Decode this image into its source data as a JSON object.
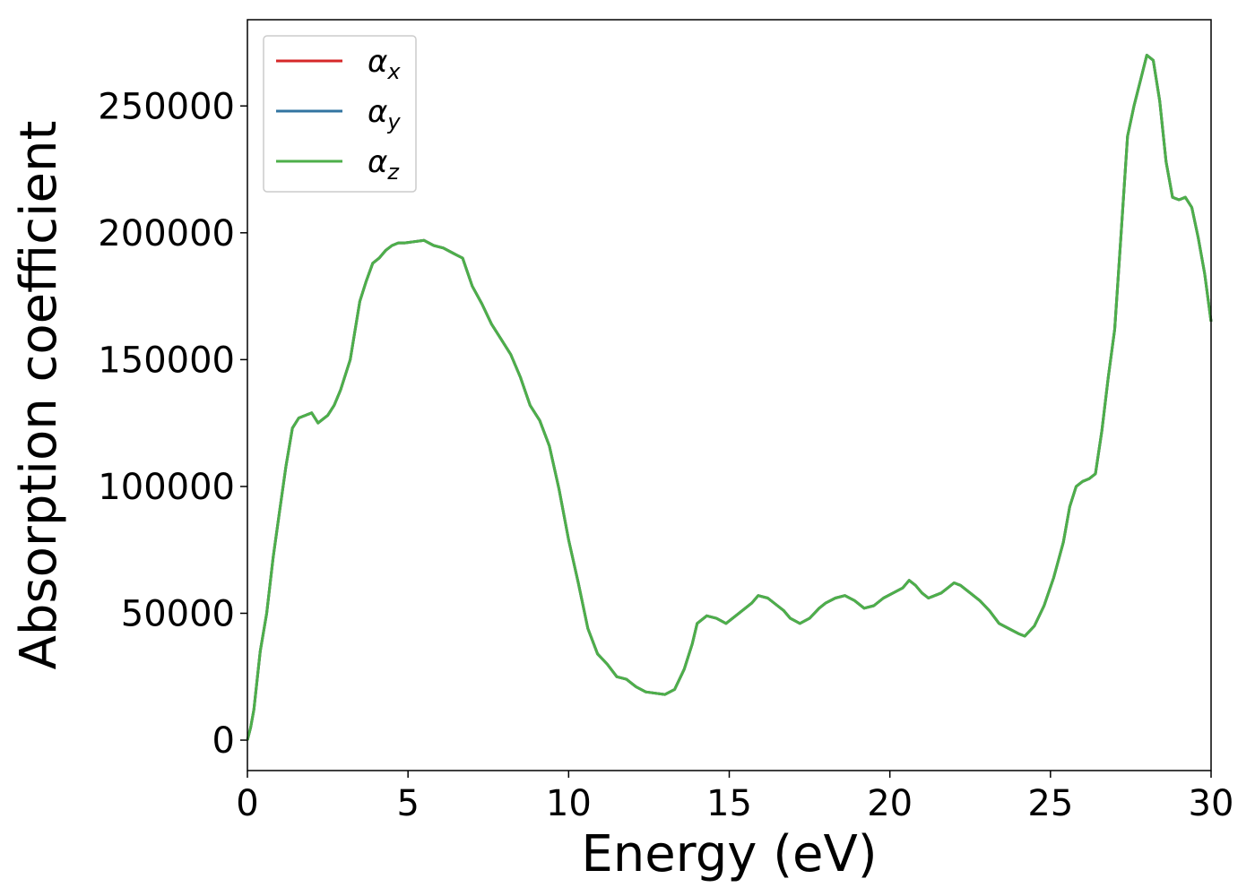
{
  "chart_data": {
    "type": "line",
    "title": "",
    "xlabel": "Energy (eV)",
    "ylabel": "Absorption coefficient",
    "xlim": [
      0,
      30
    ],
    "ylim": [
      -12000,
      284000
    ],
    "xticks": [
      0,
      5,
      10,
      15,
      20,
      25,
      30
    ],
    "yticks": [
      0,
      50000,
      100000,
      150000,
      200000,
      250000
    ],
    "grid": false,
    "legend": "upper-left",
    "x": [
      0.0,
      0.1,
      0.2,
      0.4,
      0.6,
      0.8,
      1.0,
      1.2,
      1.4,
      1.6,
      1.8,
      2.0,
      2.2,
      2.5,
      2.7,
      2.9,
      3.2,
      3.5,
      3.7,
      3.9,
      4.1,
      4.3,
      4.5,
      4.7,
      4.9,
      5.2,
      5.5,
      5.8,
      6.1,
      6.4,
      6.7,
      7.0,
      7.3,
      7.6,
      7.9,
      8.2,
      8.5,
      8.8,
      9.1,
      9.4,
      9.7,
      10.0,
      10.3,
      10.6,
      10.9,
      11.2,
      11.5,
      11.8,
      12.1,
      12.4,
      12.7,
      13.0,
      13.3,
      13.6,
      13.85,
      14.0,
      14.3,
      14.6,
      14.9,
      15.2,
      15.5,
      15.7,
      15.9,
      16.2,
      16.5,
      16.7,
      16.9,
      17.2,
      17.5,
      17.8,
      18.0,
      18.3,
      18.6,
      18.9,
      19.2,
      19.5,
      19.8,
      20.1,
      20.4,
      20.6,
      20.8,
      21.0,
      21.2,
      21.4,
      21.6,
      21.8,
      22.0,
      22.2,
      22.5,
      22.8,
      23.1,
      23.4,
      23.7,
      24.0,
      24.2,
      24.5,
      24.8,
      25.1,
      25.4,
      25.6,
      25.8,
      26.0,
      26.2,
      26.4,
      26.6,
      26.8,
      27.0,
      27.2,
      27.4,
      27.6,
      27.8,
      28.0,
      28.2,
      28.4,
      28.6,
      28.8,
      29.0,
      29.2,
      29.4,
      29.6,
      29.8,
      30.0
    ],
    "series": [
      {
        "name": "α_x",
        "color": "#d62728",
        "values": [
          0,
          5000,
          12000,
          35000,
          50000,
          72000,
          90000,
          108000,
          123000,
          127000,
          128000,
          129000,
          125000,
          128000,
          132000,
          138000,
          150000,
          173000,
          181000,
          188000,
          190000,
          193000,
          195000,
          196000,
          196000,
          196500,
          197000,
          195000,
          194000,
          192000,
          190000,
          179000,
          172000,
          164000,
          158000,
          152000,
          143000,
          132000,
          126000,
          116000,
          99000,
          79000,
          62000,
          44000,
          34000,
          30000,
          25000,
          24000,
          21000,
          19000,
          18500,
          18000,
          20000,
          28000,
          38000,
          46000,
          49000,
          48000,
          46000,
          49000,
          52000,
          54000,
          57000,
          56000,
          53000,
          51000,
          48000,
          46000,
          48000,
          52000,
          54000,
          56000,
          57000,
          55000,
          52000,
          53000,
          56000,
          58000,
          60000,
          63000,
          61000,
          58000,
          56000,
          57000,
          58000,
          60000,
          62000,
          61000,
          58000,
          55000,
          51000,
          46000,
          44000,
          42000,
          41000,
          45000,
          53000,
          64000,
          78000,
          92000,
          100000,
          102000,
          103000,
          105000,
          122000,
          143000,
          162000,
          200000,
          238000,
          250000,
          260000,
          270000,
          268000,
          252000,
          228000,
          214000,
          213000,
          214000,
          210000,
          198000,
          184000,
          165000
        ]
      },
      {
        "name": "α_y",
        "color": "#3274a1",
        "values": [
          0,
          5000,
          12000,
          35000,
          50000,
          72000,
          90000,
          108000,
          123000,
          127000,
          128000,
          129000,
          125000,
          128000,
          132000,
          138000,
          150000,
          173000,
          181000,
          188000,
          190000,
          193000,
          195000,
          196000,
          196000,
          196500,
          197000,
          195000,
          194000,
          192000,
          190000,
          179000,
          172000,
          164000,
          158000,
          152000,
          143000,
          132000,
          126000,
          116000,
          99000,
          79000,
          62000,
          44000,
          34000,
          30000,
          25000,
          24000,
          21000,
          19000,
          18500,
          18000,
          20000,
          28000,
          38000,
          46000,
          49000,
          48000,
          46000,
          49000,
          52000,
          54000,
          57000,
          56000,
          53000,
          51000,
          48000,
          46000,
          48000,
          52000,
          54000,
          56000,
          57000,
          55000,
          52000,
          53000,
          56000,
          58000,
          60000,
          63000,
          61000,
          58000,
          56000,
          57000,
          58000,
          60000,
          62000,
          61000,
          58000,
          55000,
          51000,
          46000,
          44000,
          42000,
          41000,
          45000,
          53000,
          64000,
          78000,
          92000,
          100000,
          102000,
          103000,
          105000,
          122000,
          143000,
          162000,
          200000,
          238000,
          250000,
          260000,
          270000,
          268000,
          252000,
          228000,
          214000,
          213000,
          214000,
          210000,
          198000,
          184000,
          165000
        ]
      },
      {
        "name": "α_z",
        "color": "#4daf4a",
        "values": [
          0,
          5000,
          12000,
          35000,
          50000,
          72000,
          90000,
          108000,
          123000,
          127000,
          128000,
          129000,
          125000,
          128000,
          132000,
          138000,
          150000,
          173000,
          181000,
          188000,
          190000,
          193000,
          195000,
          196000,
          196000,
          196500,
          197000,
          195000,
          194000,
          192000,
          190000,
          179000,
          172000,
          164000,
          158000,
          152000,
          143000,
          132000,
          126000,
          116000,
          99000,
          79000,
          62000,
          44000,
          34000,
          30000,
          25000,
          24000,
          21000,
          19000,
          18500,
          18000,
          20000,
          28000,
          38000,
          46000,
          49000,
          48000,
          46000,
          49000,
          52000,
          54000,
          57000,
          56000,
          53000,
          51000,
          48000,
          46000,
          48000,
          52000,
          54000,
          56000,
          57000,
          55000,
          52000,
          53000,
          56000,
          58000,
          60000,
          63000,
          61000,
          58000,
          56000,
          57000,
          58000,
          60000,
          62000,
          61000,
          58000,
          55000,
          51000,
          46000,
          44000,
          42000,
          41000,
          45000,
          53000,
          64000,
          78000,
          92000,
          100000,
          102000,
          103000,
          105000,
          122000,
          143000,
          162000,
          200000,
          238000,
          250000,
          260000,
          270000,
          268000,
          252000,
          228000,
          214000,
          213000,
          214000,
          210000,
          198000,
          184000,
          165000
        ]
      }
    ],
    "legend_labels": [
      {
        "base": "α",
        "sub": "x"
      },
      {
        "base": "α",
        "sub": "y"
      },
      {
        "base": "α",
        "sub": "z"
      }
    ]
  }
}
